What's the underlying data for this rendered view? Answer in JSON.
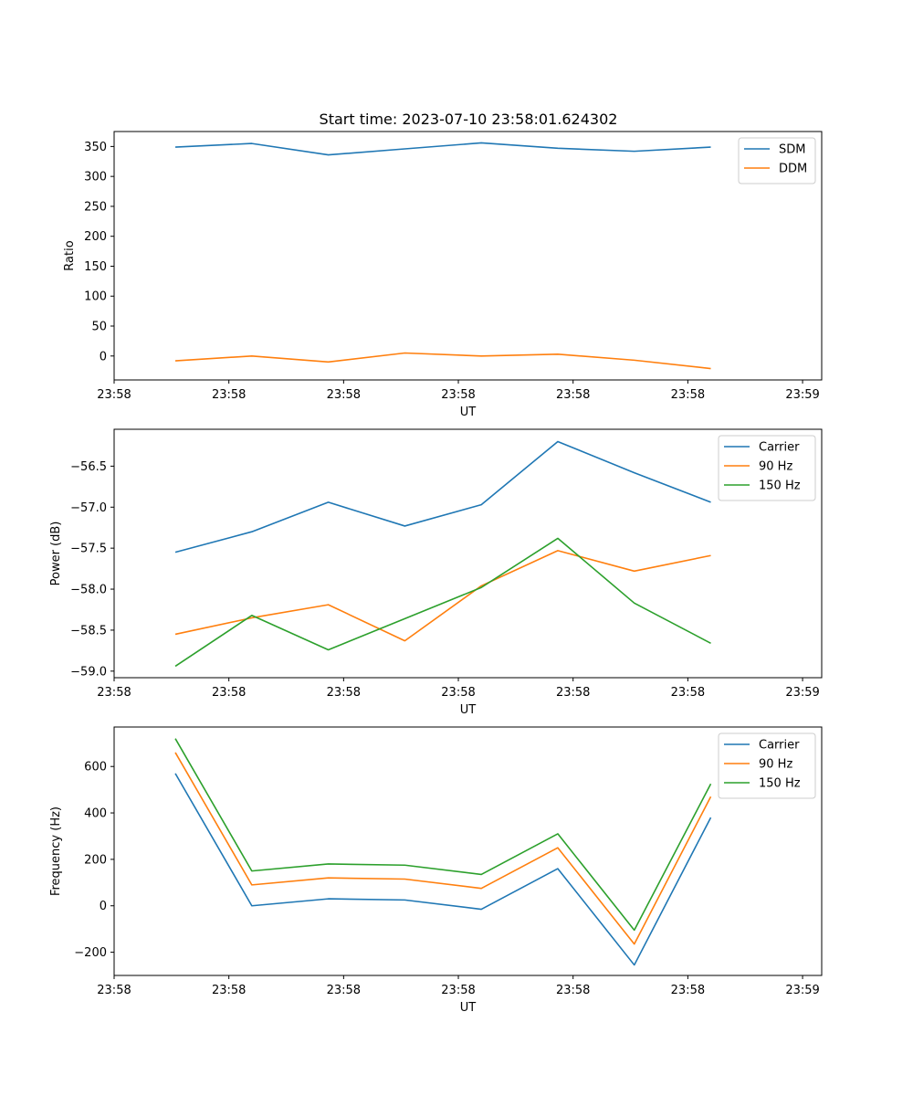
{
  "figure_title": "Start time: 2023-07-10 23:58:01.624302",
  "chart_data": [
    {
      "type": "line",
      "title": "Start time: 2023-07-10 23:58:01.624302",
      "xlabel": "UT",
      "ylabel": "Ratio",
      "x": [
        0.8,
        1.8,
        2.8,
        3.8,
        4.8,
        5.8,
        6.8,
        7.8
      ],
      "xlim": [
        0,
        9.25
      ],
      "xticks": [
        0,
        1.5,
        3,
        4.5,
        6,
        7.5,
        9
      ],
      "xtick_labels": [
        "23:58",
        "23:58",
        "23:58",
        "23:58",
        "23:58",
        "23:58",
        "23:59"
      ],
      "ylim": [
        -40,
        375
      ],
      "yticks": [
        0,
        50,
        100,
        150,
        200,
        250,
        300,
        350
      ],
      "ytick_labels": [
        "0",
        "50",
        "100",
        "150",
        "200",
        "250",
        "300",
        "350"
      ],
      "legend": "top-right",
      "series": [
        {
          "name": "SDM",
          "color": "#1f77b4",
          "values": [
            349,
            355,
            336,
            346,
            356,
            347,
            342,
            349
          ]
        },
        {
          "name": "DDM",
          "color": "#ff7f0e",
          "values": [
            -8,
            0,
            -10,
            5,
            0,
            3,
            -7,
            -21
          ]
        }
      ]
    },
    {
      "type": "line",
      "title": "",
      "xlabel": "UT",
      "ylabel": "Power (dB)",
      "x": [
        0.8,
        1.8,
        2.8,
        3.8,
        4.8,
        5.8,
        6.8,
        7.8
      ],
      "xlim": [
        0,
        9.25
      ],
      "xticks": [
        0,
        1.5,
        3,
        4.5,
        6,
        7.5,
        9
      ],
      "xtick_labels": [
        "23:58",
        "23:58",
        "23:58",
        "23:58",
        "23:58",
        "23:58",
        "23:59"
      ],
      "ylim": [
        -59.08,
        -56.05
      ],
      "yticks": [
        -59.0,
        -58.5,
        -58.0,
        -57.5,
        -57.0,
        -56.5
      ],
      "ytick_labels": [
        "−59.0",
        "−58.5",
        "−58.0",
        "−57.5",
        "−57.0",
        "−56.5"
      ],
      "legend": "top-right",
      "series": [
        {
          "name": "Carrier",
          "color": "#1f77b4",
          "values": [
            -57.55,
            -57.3,
            -56.94,
            -57.23,
            -56.97,
            -56.2,
            -56.58,
            -56.94
          ]
        },
        {
          "name": "90 Hz",
          "color": "#ff7f0e",
          "values": [
            -58.55,
            -58.35,
            -58.19,
            -58.63,
            -57.96,
            -57.53,
            -57.78,
            -57.59
          ]
        },
        {
          "name": "150 Hz",
          "color": "#2ca02c",
          "values": [
            -58.94,
            -58.32,
            -58.74,
            -58.36,
            -57.98,
            -57.38,
            -58.17,
            -58.66
          ]
        }
      ]
    },
    {
      "type": "line",
      "title": "",
      "xlabel": "UT",
      "ylabel": "Frequency (Hz)",
      "x": [
        0.8,
        1.8,
        2.8,
        3.8,
        4.8,
        5.8,
        6.8,
        7.8
      ],
      "xlim": [
        0,
        9.25
      ],
      "xticks": [
        0,
        1.5,
        3,
        4.5,
        6,
        7.5,
        9
      ],
      "xtick_labels": [
        "23:58",
        "23:58",
        "23:58",
        "23:58",
        "23:58",
        "23:58",
        "23:59"
      ],
      "ylim": [
        -300,
        770
      ],
      "yticks": [
        -200,
        0,
        200,
        400,
        600
      ],
      "ytick_labels": [
        "−200",
        "0",
        "200",
        "400",
        "600"
      ],
      "legend": "top-right",
      "series": [
        {
          "name": "Carrier",
          "color": "#1f77b4",
          "values": [
            570,
            0,
            30,
            25,
            -15,
            160,
            -255,
            380
          ]
        },
        {
          "name": "90 Hz",
          "color": "#ff7f0e",
          "values": [
            660,
            90,
            120,
            115,
            75,
            250,
            -165,
            470
          ]
        },
        {
          "name": "150 Hz",
          "color": "#2ca02c",
          "values": [
            720,
            150,
            180,
            175,
            135,
            310,
            -105,
            525
          ]
        }
      ]
    }
  ]
}
